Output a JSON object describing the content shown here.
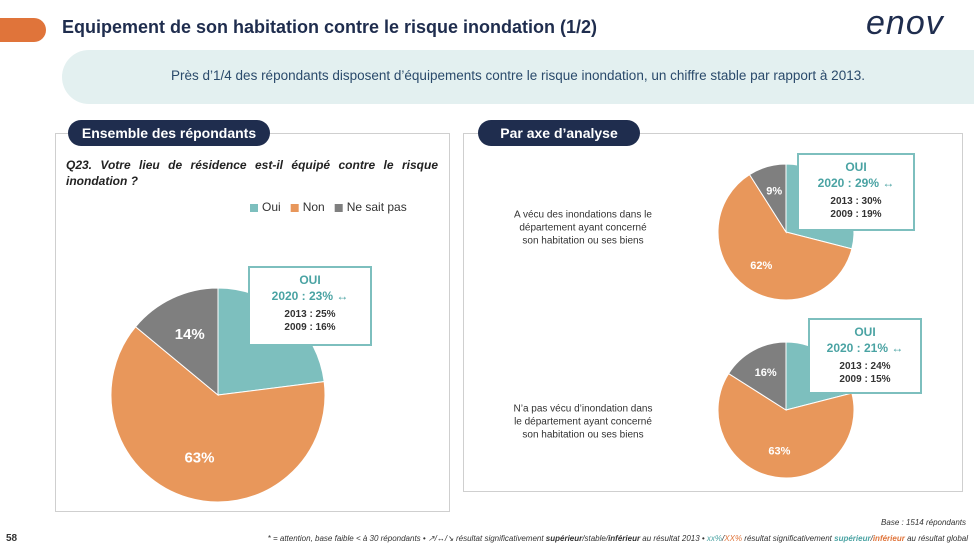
{
  "header": {
    "title": "Equipement de son habitation contre le risque inondation (1/2)",
    "logo": "enov"
  },
  "banner": "Près d’1/4 des répondants disposent d’équipements contre le risque inondation, un chiffre stable par rapport à 2013.",
  "left_panel": {
    "tab": "Ensemble des répondants",
    "question": "Q23. Votre lieu de résidence est-il équipé contre le risque inondation ?"
  },
  "right_panel": {
    "tab": "Par axe d’analyse"
  },
  "chart_data": [
    {
      "type": "pie",
      "categories": [
        "Oui",
        "Non",
        "Ne sait pas"
      ],
      "colors": [
        "#7dbfbe",
        "#e8975b",
        "#7f7f7f"
      ],
      "legend": "top",
      "values": [
        23,
        63,
        14
      ],
      "value_labels": [
        null,
        "63%",
        "14%"
      ],
      "annotations": [
        "OUI",
        "2020 : 23% ↔",
        "2013 : 25%",
        "2009 : 16%"
      ]
    },
    {
      "type": "pie",
      "colors": [
        "#7dbfbe",
        "#e8975b",
        "#7f7f7f"
      ],
      "label": [
        "A vécu des inondations dans le",
        "département ayant concerné",
        "son habitation ou ses biens"
      ],
      "values": [
        29,
        62,
        9
      ],
      "value_labels": [
        null,
        "62%",
        "9%"
      ],
      "annotations": [
        "OUI",
        "2020 : 29% ↔",
        "2013 : 30%",
        "2009 : 19%"
      ]
    },
    {
      "type": "pie",
      "colors": [
        "#7dbfbe",
        "#e8975b",
        "#7f7f7f"
      ],
      "label": [
        "N’a pas vécu d’inondation dans",
        "le département ayant concerné",
        "son habitation ou ses biens"
      ],
      "values": [
        21,
        63,
        16
      ],
      "value_labels": [
        null,
        "63%",
        "16%"
      ],
      "annotations": [
        "OUI",
        "2020 : 21% ↔",
        "2013 : 24%",
        "2009 : 15%"
      ]
    }
  ],
  "footer": {
    "page": "58",
    "base": "Base : 1514 répondants",
    "note": [
      "* = attention, base faible < à 30 répondants • ↗/↔/↘  résultat significativement ",
      "supérieur",
      "/stable/",
      "inférieur",
      " au résultat 2013 • ",
      "xx%",
      "/",
      "XX%",
      " résultat significativement ",
      "supérieur",
      "/",
      "inférieur",
      " au résultat global"
    ]
  }
}
